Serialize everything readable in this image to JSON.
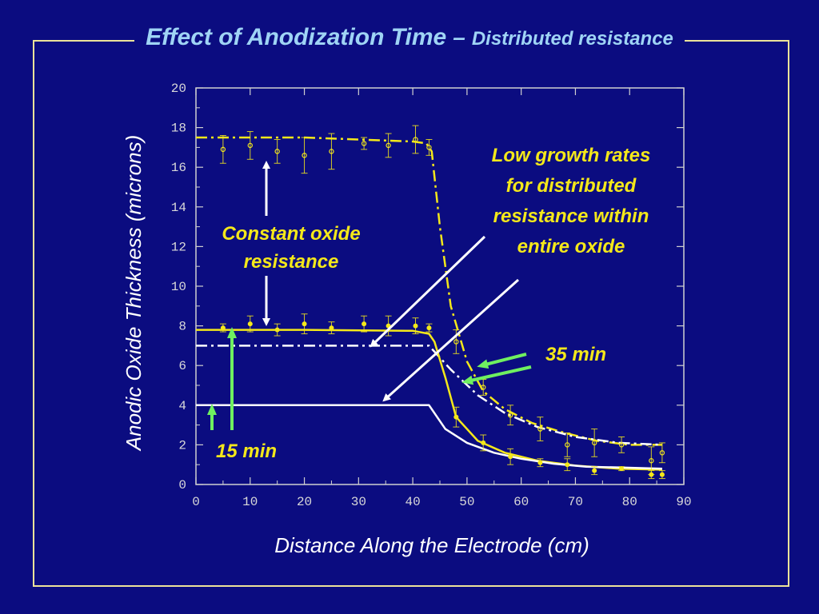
{
  "slide": {
    "title_main": "Effect of Anodization Time",
    "title_dash": "–",
    "title_sub": "Distributed resistance"
  },
  "colors": {
    "background": "#0b0c80",
    "frame": "#ece39a",
    "title": "#9fd4f5",
    "yellow": "#f4e81a",
    "white": "#ffffff",
    "green": "#6ff060"
  },
  "chart_data": {
    "type": "scatter",
    "xlabel": "Distance Along the Electrode (cm)",
    "ylabel": "Anodic Oxide Thickness (microns)",
    "xlim": [
      0,
      90
    ],
    "ylim": [
      0,
      20
    ],
    "x_ticks": [
      0,
      10,
      20,
      30,
      40,
      50,
      60,
      70,
      80,
      90
    ],
    "y_ticks": [
      0,
      2,
      4,
      6,
      8,
      10,
      12,
      14,
      16,
      18,
      20
    ],
    "grid": false,
    "series": [
      {
        "name": "35 min",
        "marker": "open-circle",
        "color": "#f4e81a",
        "points": [
          {
            "x": 5,
            "y": 16.9,
            "err": 0.7
          },
          {
            "x": 10,
            "y": 17.1,
            "err": 0.7
          },
          {
            "x": 15,
            "y": 16.8,
            "err": 0.6
          },
          {
            "x": 20,
            "y": 16.6,
            "err": 0.9
          },
          {
            "x": 25,
            "y": 16.8,
            "err": 0.9
          },
          {
            "x": 31,
            "y": 17.2,
            "err": 0.3
          },
          {
            "x": 35.5,
            "y": 17.1,
            "err": 0.6
          },
          {
            "x": 40.5,
            "y": 17.4,
            "err": 0.7
          },
          {
            "x": 43,
            "y": 17.0,
            "err": 0.4
          },
          {
            "x": 48,
            "y": 7.2,
            "err": 0.6
          },
          {
            "x": 53,
            "y": 4.9,
            "err": 0.4
          },
          {
            "x": 58,
            "y": 3.5,
            "err": 0.5
          },
          {
            "x": 63.5,
            "y": 2.8,
            "err": 0.6
          },
          {
            "x": 68.5,
            "y": 2.0,
            "err": 0.6
          },
          {
            "x": 73.5,
            "y": 2.1,
            "err": 0.7
          },
          {
            "x": 78.5,
            "y": 2.0,
            "err": 0.4
          },
          {
            "x": 84,
            "y": 1.2,
            "err": 0.7
          },
          {
            "x": 86,
            "y": 1.6,
            "err": 0.5
          }
        ]
      },
      {
        "name": "15 min",
        "marker": "filled-circle",
        "color": "#f4e81a",
        "points": [
          {
            "x": 5,
            "y": 7.9,
            "err": 0.2
          },
          {
            "x": 10,
            "y": 8.1,
            "err": 0.4
          },
          {
            "x": 15,
            "y": 7.8,
            "err": 0.3
          },
          {
            "x": 20,
            "y": 8.1,
            "err": 0.5
          },
          {
            "x": 25,
            "y": 7.9,
            "err": 0.3
          },
          {
            "x": 31,
            "y": 8.1,
            "err": 0.4
          },
          {
            "x": 35.5,
            "y": 8.0,
            "err": 0.5
          },
          {
            "x": 40.5,
            "y": 8.0,
            "err": 0.4
          },
          {
            "x": 43,
            "y": 7.9,
            "err": 0.2
          },
          {
            "x": 48,
            "y": 3.4,
            "err": 0.5
          },
          {
            "x": 53,
            "y": 2.1,
            "err": 0.4
          },
          {
            "x": 58,
            "y": 1.4,
            "err": 0.4
          },
          {
            "x": 63.5,
            "y": 1.1,
            "err": 0.2
          },
          {
            "x": 68.5,
            "y": 1.0,
            "err": 0.3
          },
          {
            "x": 73.5,
            "y": 0.7,
            "err": 0.2
          },
          {
            "x": 78.5,
            "y": 0.8,
            "err": 0.1
          },
          {
            "x": 84,
            "y": 0.5,
            "err": 0.2
          },
          {
            "x": 86,
            "y": 0.5,
            "err": 0.2
          }
        ]
      }
    ],
    "curves": [
      {
        "name": "35-min-constant-resistance",
        "style": "dash-dot",
        "color": "#f4e81a",
        "x": [
          0,
          10,
          20,
          30,
          40,
          42.5,
          43.5,
          45,
          47,
          50,
          53,
          57,
          62,
          68,
          74,
          80,
          86
        ],
        "y": [
          17.5,
          17.5,
          17.5,
          17.4,
          17.3,
          17.2,
          16.8,
          13.0,
          9.0,
          6.2,
          4.7,
          3.8,
          3.1,
          2.6,
          2.2,
          2.0,
          2.0
        ]
      },
      {
        "name": "35-min-distributed-resistance",
        "style": "dash-dot",
        "color": "#ffffff",
        "x": [
          0,
          43,
          47,
          52,
          57,
          63,
          70,
          78,
          86
        ],
        "y": [
          7.0,
          7.0,
          5.8,
          4.5,
          3.6,
          2.9,
          2.4,
          2.1,
          2.0
        ]
      },
      {
        "name": "15-min-constant-resistance",
        "style": "solid",
        "color": "#f4e81a",
        "x": [
          0,
          20,
          40,
          43,
          44,
          46,
          48,
          52,
          57,
          63,
          70,
          78,
          86
        ],
        "y": [
          7.8,
          7.8,
          7.75,
          7.6,
          7.2,
          5.4,
          3.4,
          2.2,
          1.6,
          1.2,
          0.95,
          0.8,
          0.75
        ]
      },
      {
        "name": "15-min-distributed-resistance",
        "style": "solid",
        "color": "#ffffff",
        "x": [
          0,
          43,
          46,
          50,
          55,
          60,
          66,
          72,
          79,
          86
        ],
        "y": [
          4.0,
          4.0,
          2.8,
          2.1,
          1.6,
          1.3,
          1.05,
          0.9,
          0.85,
          0.8
        ]
      }
    ],
    "annotations": {
      "constant_line1": "Constant oxide",
      "constant_line2": "resistance",
      "low_line1": "Low growth rates",
      "low_line2": "for distributed",
      "low_line3": "resistance within",
      "low_line4": "entire oxide",
      "label_35": "35 min",
      "label_15": "15 min"
    }
  }
}
